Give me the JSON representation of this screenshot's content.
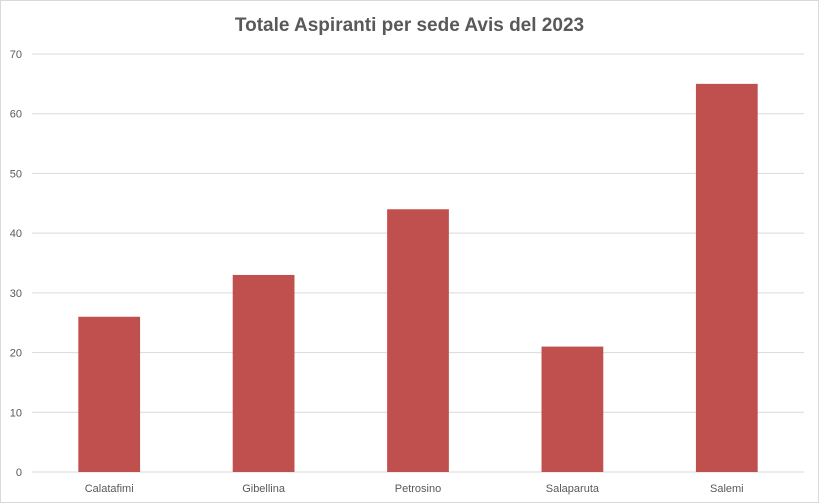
{
  "chart_data": {
    "type": "bar",
    "title": "Totale Aspiranti per sede Avis del 2023",
    "xlabel": "",
    "ylabel": "",
    "categories": [
      "Calatafimi",
      "Gibellina",
      "Petrosino",
      "Salaparuta",
      "Salemi"
    ],
    "values": [
      26,
      33,
      44,
      21,
      65
    ],
    "ylim": [
      0,
      70
    ],
    "yticks": [
      0,
      10,
      20,
      30,
      40,
      50,
      60,
      70
    ],
    "grid": true,
    "legend": "none",
    "bar_color": "#c0504d",
    "grid_color": "#d9d9d9"
  }
}
